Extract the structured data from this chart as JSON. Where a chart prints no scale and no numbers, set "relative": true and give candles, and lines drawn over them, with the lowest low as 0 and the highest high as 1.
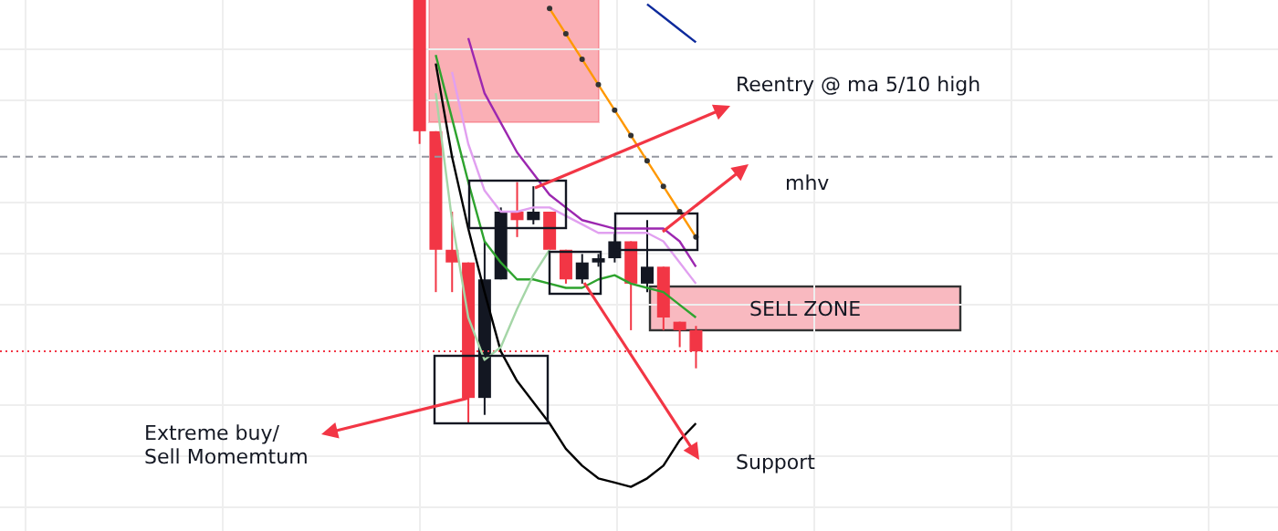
{
  "chart_data": {
    "type": "candlestick",
    "relative": true,
    "tick_labels": false,
    "grid": true,
    "categories": [
      null,
      null,
      null,
      null,
      null,
      null,
      null,
      null,
      null,
      null,
      null,
      null,
      null,
      null,
      null,
      null,
      null,
      null
    ],
    "ohlc": [
      [
        1.0,
        1.0,
        0.66,
        0.69
      ],
      [
        0.69,
        0.69,
        0.31,
        0.41
      ],
      [
        0.41,
        0.5,
        0.31,
        0.38
      ],
      [
        0.38,
        0.38,
        0.0,
        0.06
      ],
      [
        0.06,
        0.43,
        0.02,
        0.34
      ],
      [
        0.34,
        0.51,
        0.34,
        0.5
      ],
      [
        0.5,
        0.57,
        0.44,
        0.48
      ],
      [
        0.48,
        0.56,
        0.47,
        0.5
      ],
      [
        0.5,
        0.5,
        0.41,
        0.41
      ],
      [
        0.41,
        0.41,
        0.33,
        0.34
      ],
      [
        0.34,
        0.4,
        0.33,
        0.38
      ],
      [
        0.38,
        0.4,
        0.37,
        0.39
      ],
      [
        0.39,
        0.45,
        0.38,
        0.43
      ],
      [
        0.43,
        0.43,
        0.22,
        0.33
      ],
      [
        0.33,
        0.48,
        0.31,
        0.37
      ],
      [
        0.37,
        0.37,
        0.22,
        0.25
      ],
      [
        0.24,
        0.24,
        0.18,
        0.22
      ],
      [
        0.22,
        0.23,
        0.13,
        0.17
      ]
    ],
    "colors": [
      "#f23645",
      "#f23645",
      "#f23645",
      "#f23645",
      "#131722",
      "#131722",
      "#f23645",
      "#131722",
      "#f23645",
      "#f23645",
      "#131722",
      "#131722",
      "#131722",
      "#f23645",
      "#131722",
      "#f23645",
      "#f23645",
      "#f23645"
    ],
    "series": [
      {
        "type": "line",
        "color": "#9c27b0",
        "values": [
          null,
          null,
          null,
          0.91,
          0.78,
          0.71,
          0.64,
          0.59,
          0.54,
          0.51,
          0.48,
          0.47,
          0.46,
          0.46,
          0.46,
          0.46,
          0.43,
          0.37
        ]
      },
      {
        "type": "line",
        "color": "#e1a0f0",
        "values": [
          null,
          null,
          0.83,
          0.66,
          0.55,
          0.5,
          0.5,
          0.51,
          0.51,
          0.49,
          0.47,
          0.45,
          0.45,
          0.45,
          0.45,
          0.43,
          0.38,
          0.33
        ]
      },
      {
        "type": "line",
        "color": "#2ea32e",
        "values": [
          null,
          0.87,
          0.72,
          0.57,
          0.43,
          0.38,
          0.34,
          0.34,
          0.33,
          0.32,
          0.32,
          0.34,
          0.35,
          0.33,
          0.32,
          0.31,
          0.28,
          0.25
        ]
      },
      {
        "type": "line",
        "color": "#000000",
        "values": [
          null,
          0.85,
          0.63,
          0.46,
          0.31,
          0.17,
          0.1,
          0.05,
          0.0,
          -0.06,
          -0.1,
          -0.13,
          -0.14,
          -0.15,
          -0.13,
          -0.1,
          -0.04,
          0.0
        ]
      },
      {
        "type": "line",
        "color": "#a5d6a7",
        "values": [
          null,
          0.78,
          0.48,
          0.25,
          0.15,
          0.18,
          0.27,
          0.35,
          0.41,
          null,
          null,
          null,
          null,
          null,
          null,
          null,
          null,
          null
        ]
      },
      {
        "type": "line",
        "color": "#ff9800",
        "marker": "circle",
        "values": [
          null,
          null,
          null,
          null,
          null,
          null,
          null,
          null,
          0.98,
          0.92,
          0.86,
          0.8,
          0.74,
          0.68,
          0.62,
          0.56,
          0.5,
          0.44
        ]
      },
      {
        "type": "line",
        "color": "#0d2a9c",
        "values": [
          null,
          null,
          null,
          null,
          null,
          null,
          null,
          null,
          null,
          null,
          null,
          null,
          null,
          null,
          0.99,
          0.96,
          0.93,
          0.9
        ]
      }
    ],
    "ref_lines": [
      {
        "axis": "y",
        "value": 0.17,
        "color": "#f23645",
        "line_style": "dotted"
      },
      {
        "axis": "y",
        "value": 0.63,
        "color": "#9598a1",
        "line_style": "dashed"
      }
    ],
    "annotations": [
      "Reentry @ ma 5/10 high",
      "mhv",
      "SELL ZONE",
      "Support",
      "Extreme buy/\nSell Momemtum"
    ]
  }
}
